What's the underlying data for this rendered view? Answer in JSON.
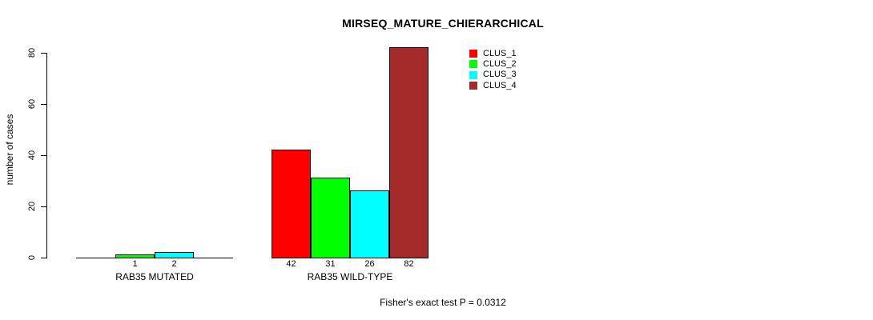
{
  "chart_data": {
    "type": "bar",
    "title": "MIRSEQ_MATURE_CHIERARCHICAL",
    "xlabel": "",
    "ylabel": "number of cases",
    "categories": [
      "RAB35 MUTATED",
      "RAB35 WILD-TYPE"
    ],
    "series": [
      {
        "name": "CLUS_1",
        "color": "#ff0000",
        "values": [
          0,
          42
        ]
      },
      {
        "name": "CLUS_2",
        "color": "#00ff00",
        "values": [
          1,
          31
        ]
      },
      {
        "name": "CLUS_3",
        "color": "#00ffff",
        "values": [
          2,
          26
        ]
      },
      {
        "name": "CLUS_4",
        "color": "#a52a2a",
        "values": [
          0,
          82
        ]
      }
    ],
    "value_labels": [
      [
        "",
        "1",
        "2",
        ""
      ],
      [
        "42",
        "31",
        "26",
        "82"
      ]
    ],
    "yticks": [
      0,
      20,
      40,
      60,
      80
    ],
    "ylim": [
      0,
      82
    ],
    "grid": false,
    "legend_position": "top-right",
    "legend_items": [
      "CLUS_1",
      "CLUS_2",
      "CLUS_3",
      "CLUS_4"
    ],
    "annotation": "Fisher's exact test P = 0.0312"
  },
  "colors": {
    "background": "#ffffff",
    "axis": "#000000",
    "bar_border": "#000000",
    "text": "#000000"
  }
}
